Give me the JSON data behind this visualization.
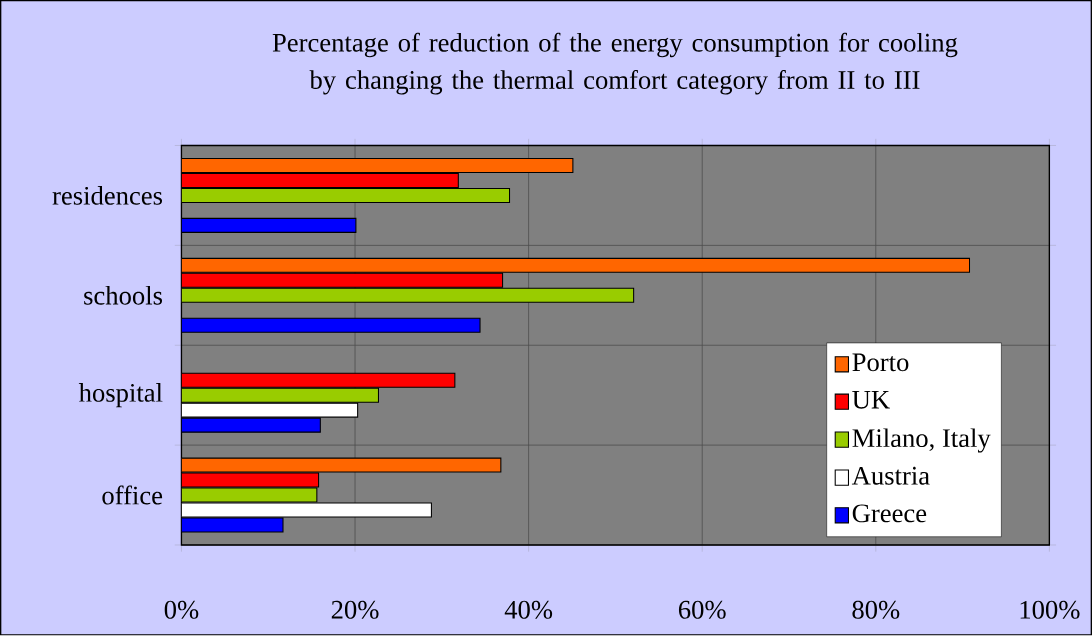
{
  "chart_data": {
    "type": "bar",
    "orientation": "horizontal",
    "title": "Percentage of reduction of the energy consumption for cooling by changing the thermal comfort category from II to III",
    "categories": [
      "residences",
      "schools",
      "hospital",
      "office"
    ],
    "series": [
      {
        "name": "Porto",
        "color": "#ff6600",
        "values": [
          45.1,
          90.8,
          null,
          36.8
        ]
      },
      {
        "name": "UK",
        "color": "#ff0000",
        "values": [
          31.9,
          37.0,
          31.5,
          15.8
        ]
      },
      {
        "name": "Milano, Italy",
        "color": "#99cc00",
        "values": [
          37.8,
          52.1,
          22.7,
          15.6
        ]
      },
      {
        "name": "Austria",
        "color": "#ffffff",
        "values": [
          null,
          null,
          20.3,
          28.8
        ]
      },
      {
        "name": "Greece",
        "color": "#0000ff",
        "values": [
          20.1,
          34.4,
          16.0,
          11.7
        ]
      }
    ],
    "xlim": [
      0,
      100
    ],
    "xticks": [
      {
        "value": 0,
        "label": "0%"
      },
      {
        "value": 20,
        "label": "20%"
      },
      {
        "value": 40,
        "label": "40%"
      },
      {
        "value": 60,
        "label": "60%"
      },
      {
        "value": 80,
        "label": "80%"
      },
      {
        "value": 100,
        "label": "100%"
      }
    ],
    "grid": true,
    "legend": "bottom right"
  }
}
